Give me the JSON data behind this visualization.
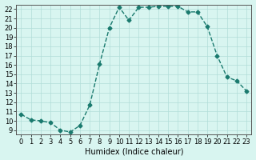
{
  "x": [
    0,
    1,
    2,
    3,
    4,
    5,
    6,
    7,
    8,
    9,
    10,
    11,
    12,
    13,
    14,
    15,
    16,
    17,
    18,
    19,
    20,
    21,
    22,
    23
  ],
  "y": [
    10.7,
    10.1,
    10.0,
    9.8,
    9.0,
    8.8,
    9.5,
    11.7,
    16.1,
    20.0,
    22.2,
    20.8,
    22.2,
    22.2,
    22.3,
    22.3,
    22.3,
    21.7,
    21.7,
    20.1,
    17.0,
    14.7,
    14.3,
    13.2
  ],
  "line_color": "#1a7a6e",
  "marker": "D",
  "markersize": 2.5,
  "bg_color": "#d8f5f0",
  "grid_color": "#b0ddd8",
  "xlabel": "Humidex (Indice chaleur)",
  "ylabel": "",
  "xlim": [
    -0.5,
    23.5
  ],
  "ylim": [
    8.5,
    22.5
  ],
  "yticks": [
    9,
    10,
    11,
    12,
    13,
    14,
    15,
    16,
    17,
    18,
    19,
    20,
    21,
    22
  ],
  "xticks": [
    0,
    1,
    2,
    3,
    4,
    5,
    6,
    7,
    8,
    9,
    10,
    11,
    12,
    13,
    14,
    15,
    16,
    17,
    18,
    19,
    20,
    21,
    22,
    23
  ],
  "tick_fontsize": 6,
  "label_fontsize": 7
}
